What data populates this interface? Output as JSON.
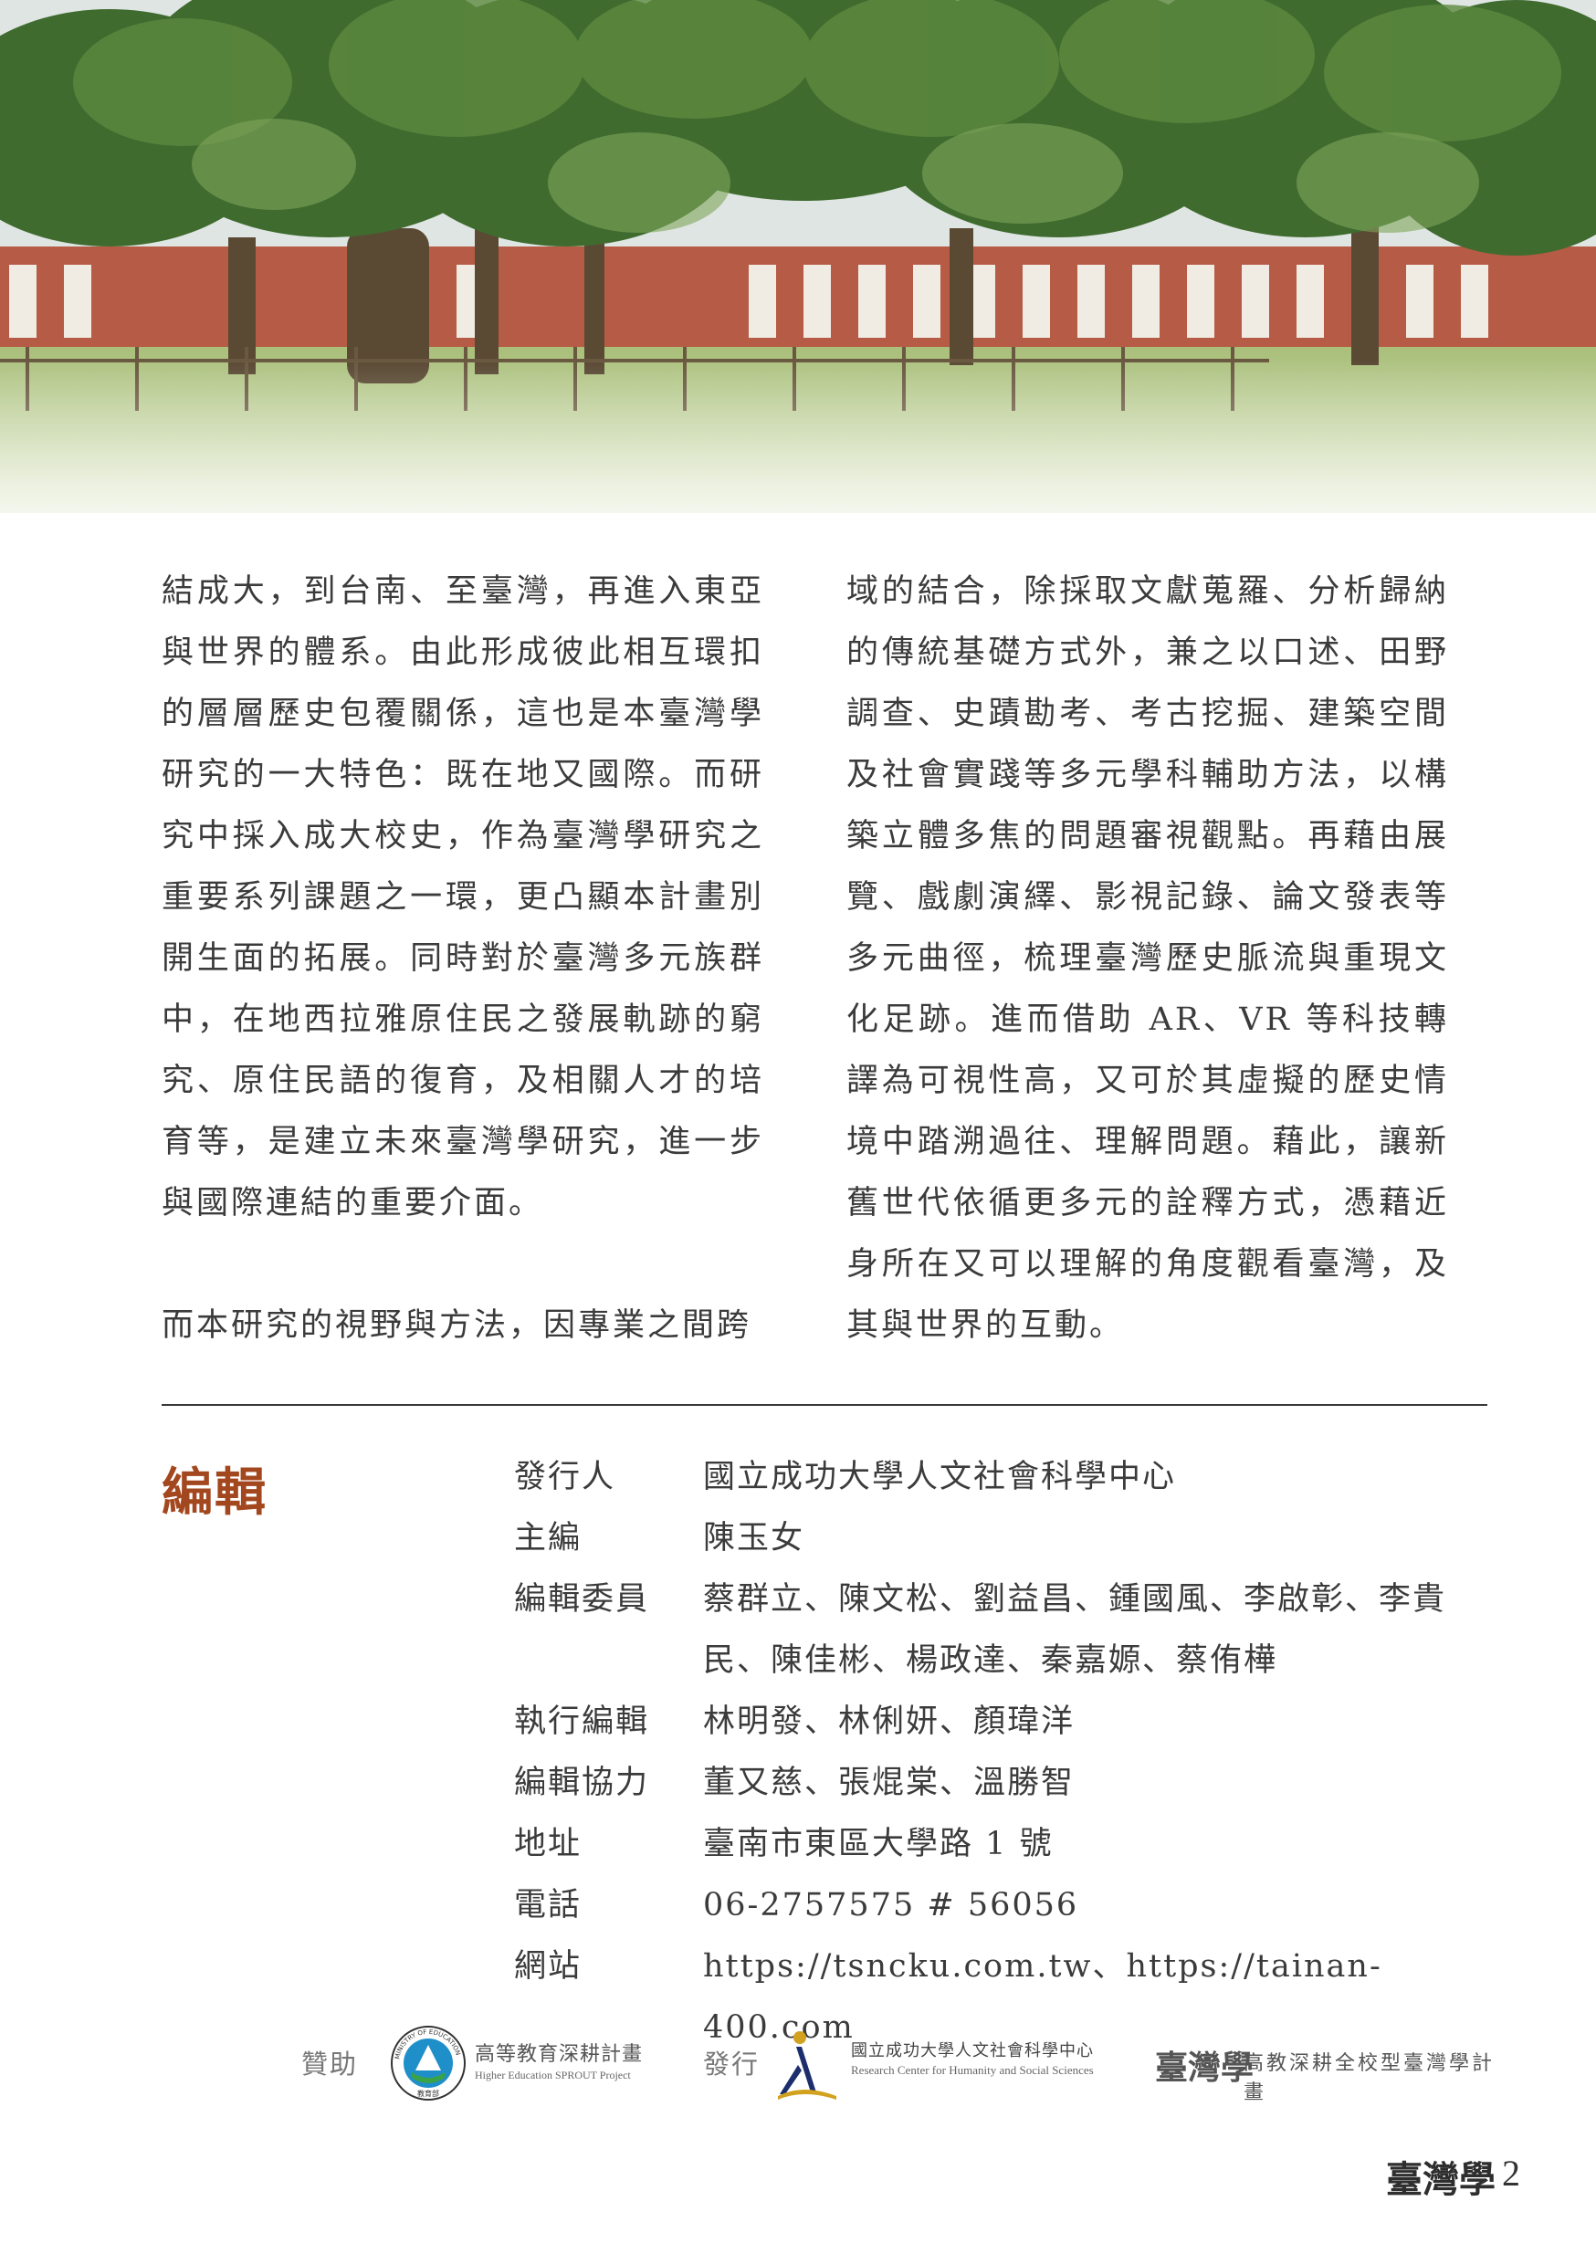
{
  "hero": {
    "image": "campus-banyan-trees-photo"
  },
  "body": {
    "left_paragraphs": [
      "結成大，到台南、至臺灣，再進入東亞與世界的體系。由此形成彼此相互環扣的層層歷史包覆關係，這也是本臺灣學研究的一大特色：既在地又國際。而研究中採入成大校史，作為臺灣學研究之重要系列課題之一環，更凸顯本計畫別開生面的拓展。同時對於臺灣多元族群中，在地西拉雅原住民之發展軌跡的窮究、原住民語的復育，及相關人才的培育等，是建立未來臺灣學研究，進一步與國際連結的重要介面。",
      "而本研究的視野與方法，因專業之間跨"
    ],
    "right_paragraphs": [
      "域的結合，除採取文獻蒐羅、分析歸納的傳統基礎方式外，兼之以口述、田野調查、史蹟勘考、考古挖掘、建築空間及社會實踐等多元學科輔助方法，以構築立體多焦的問題審視觀點。再藉由展覽、戲劇演繹、影視記錄、論文發表等多元曲徑，梳理臺灣歷史脈流與重現文化足跡。進而借助 AR、VR 等科技轉譯為可視性高，又可於其虛擬的歷史情境中踏溯過往、理解問題。藉此，讓新舊世代依循更多元的詮釋方式，憑藉近身所在又可以理解的角度觀看臺灣，及其與世界的互動。"
    ]
  },
  "editorial": {
    "title": "編輯",
    "rows": [
      {
        "label": "發行人",
        "value": "國立成功大學人文社會科學中心"
      },
      {
        "label": "主編",
        "value": "陳玉女"
      },
      {
        "label": "編輯委員",
        "value": "蔡群立、陳文松、劉益昌、鍾國風、李啟彰、李貴民、陳佳彬、楊政達、秦嘉嫄、蔡侑樺"
      },
      {
        "label": "執行編輯",
        "value": "林明發、林俐妍、顏瑋洋"
      },
      {
        "label": "編輯協力",
        "value": "董又慈、張焜棠、溫勝智"
      },
      {
        "label": "地址",
        "value": "臺南市東區大學路 1 號"
      },
      {
        "label": "電話",
        "value": "06-2757575 # 56056"
      },
      {
        "label": "網站",
        "value": "https://tsncku.com.tw、https://tainan-400.com"
      }
    ]
  },
  "sponsors": {
    "sponsor_label": "贊助",
    "moe_seal_text": "MINISTRY OF EDUCATION",
    "moe_seal_zh": "教育部",
    "moe_program_zh": "高等教育深耕計畫",
    "moe_program_en": "Higher Education SPROUT Project",
    "publisher_label": "發行",
    "center_zh": "國立成功大學人文社會科學中心",
    "center_en": "Research Center for Humanity and Social Sciences",
    "tw_logo_text": "臺灣學",
    "tw_program": "高教深耕全校型臺灣學計畫"
  },
  "footer": {
    "brand": "臺灣學",
    "page_number": "2"
  }
}
